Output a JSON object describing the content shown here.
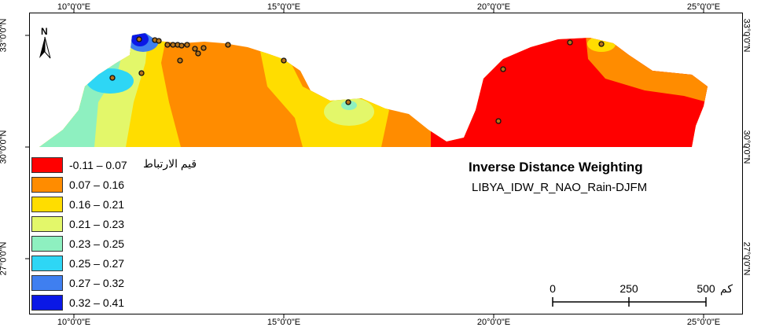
{
  "map": {
    "title": "Inverse Distance Weighting",
    "subtitle": "LIBYA_IDW_R_NAO_Rain-DJFM",
    "north_label": "N",
    "longitude_ticks": [
      "10°0'0\"E",
      "15°0'0\"E",
      "20°0'0\"E",
      "25°0'0\"E"
    ],
    "latitude_ticks": [
      "33°0'0\"N",
      "30°0'0\"N",
      "27°0'0\"N"
    ]
  },
  "legend": {
    "title": "قيم الارتباط",
    "classes": [
      {
        "label": "-0.11 – 0.07",
        "color": "#ff0000"
      },
      {
        "label": "0.07 – 0.16",
        "color": "#ff8c00"
      },
      {
        "label": "0.16 – 0.21",
        "color": "#ffdd00"
      },
      {
        "label": "0.21 – 0.23",
        "color": "#e3f76a"
      },
      {
        "label": "0.23 – 0.25",
        "color": "#8ef0c0"
      },
      {
        "label": "0.25 – 0.27",
        "color": "#2ed6f5"
      },
      {
        "label": "0.27 – 0.32",
        "color": "#3f7ff0"
      },
      {
        "label": "0.32 – 0.41",
        "color": "#0a18e6"
      }
    ]
  },
  "scale_bar": {
    "unit": "كم",
    "labels": [
      "0",
      "250",
      "500"
    ]
  }
}
